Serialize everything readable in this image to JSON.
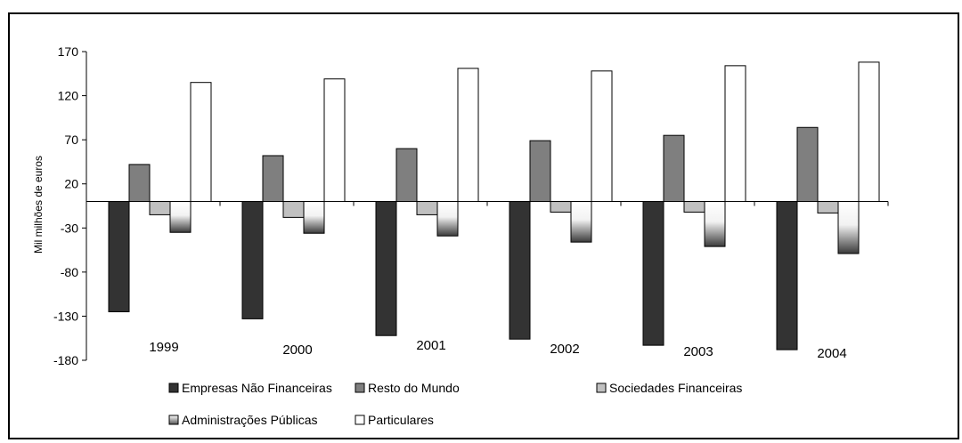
{
  "chart_data": {
    "type": "bar",
    "ylabel": "Mil milhões de euros",
    "ylim": [
      -180,
      170
    ],
    "yticks": [
      170,
      120,
      70,
      20,
      -30,
      -80,
      -130,
      -180
    ],
    "categories": [
      "1999",
      "2000",
      "2001",
      "2002",
      "2003",
      "2004"
    ],
    "series": [
      {
        "name": "Empresas Não Financeiras",
        "color": "#333333",
        "values": [
          -125,
          -133,
          -152,
          -156,
          -163,
          -168
        ]
      },
      {
        "name": "Resto do Mundo",
        "color": "#7f7f7f",
        "values": [
          42,
          52,
          60,
          69,
          75,
          84
        ]
      },
      {
        "name": "Sociedades Financeiras",
        "color": "#c0c0c0",
        "values": [
          -15,
          -18,
          -15,
          -12,
          -12,
          -13
        ]
      },
      {
        "name": "Administrações Públicas",
        "color": "gradient",
        "values": [
          -35,
          -36,
          -39,
          -46,
          -51,
          -59
        ]
      },
      {
        "name": "Particulares",
        "color": "#ffffff",
        "values": [
          135,
          139,
          151,
          148,
          154,
          158
        ]
      }
    ],
    "legend_position": "bottom",
    "grid": false
  }
}
